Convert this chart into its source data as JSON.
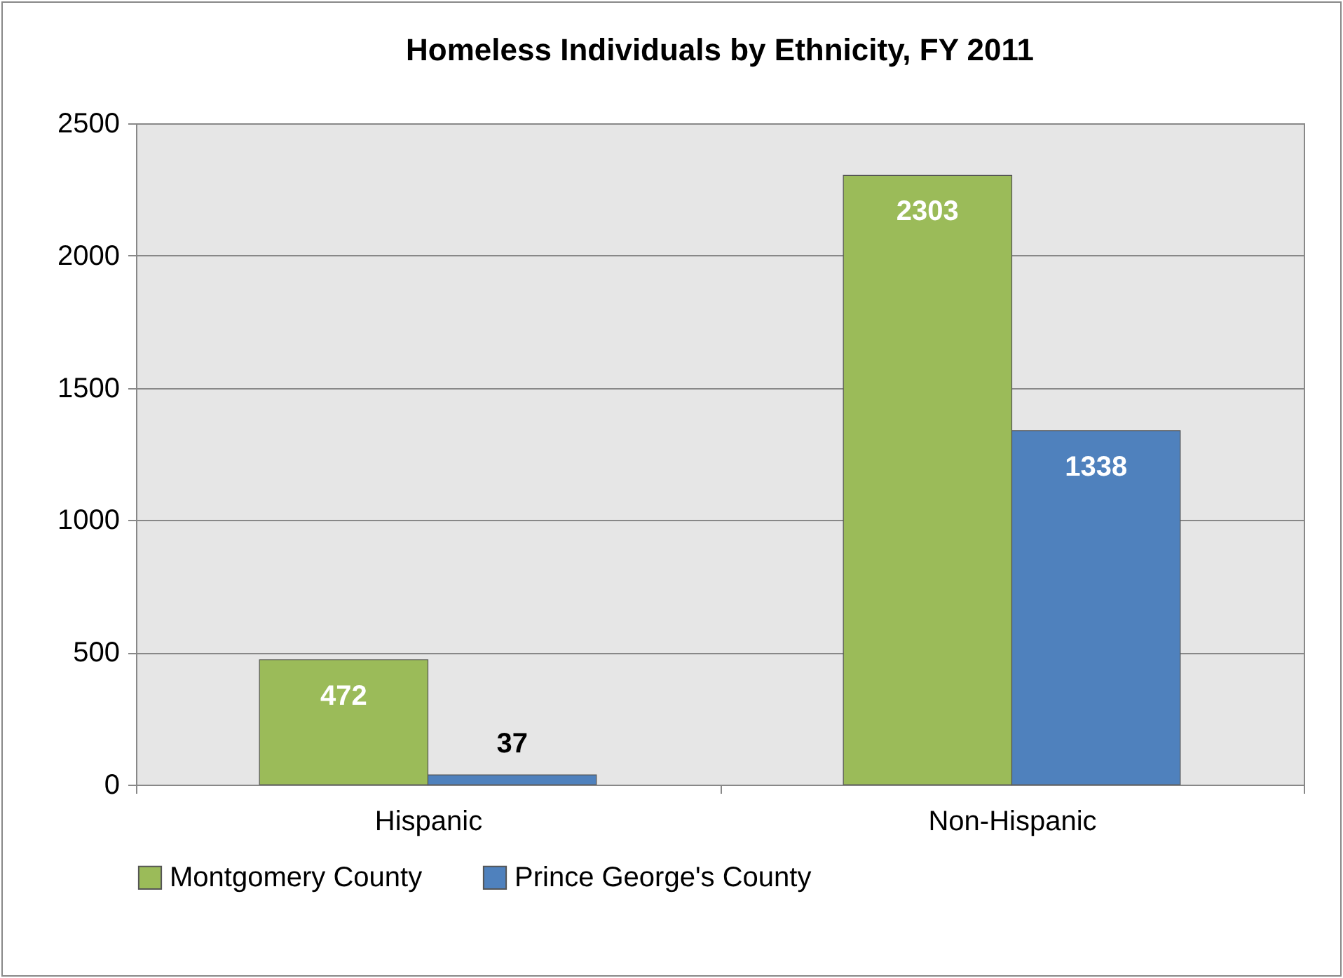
{
  "chart_data": {
    "type": "bar",
    "title": "Homeless Individuals by Ethnicity, FY 2011",
    "categories": [
      "Hispanic",
      "Non-Hispanic"
    ],
    "series": [
      {
        "name": "Montgomery County",
        "color": "#9bbb59",
        "values": [
          472,
          2303
        ]
      },
      {
        "name": "Prince George's County",
        "color": "#4f81bd",
        "values": [
          37,
          1338
        ]
      }
    ],
    "ylim": [
      0,
      2500
    ],
    "yticks": [
      0,
      500,
      1000,
      1500,
      2000,
      2500
    ],
    "grid": "y",
    "legend": "bottom",
    "data_labels": true
  }
}
